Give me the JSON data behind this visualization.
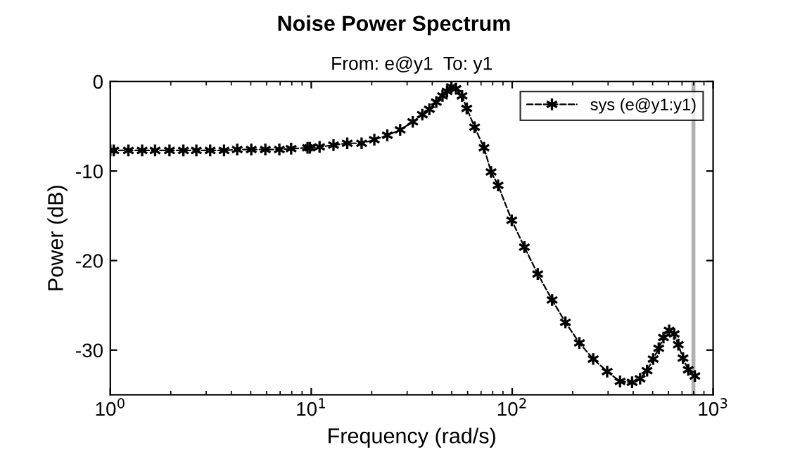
{
  "chart_data": {
    "type": "line",
    "title": "Noise Power Spectrum",
    "subtitle": "From: e@y1  To: y1",
    "xlabel": "Frequency (rad/s)",
    "ylabel": "Power (dB)",
    "log": "x",
    "xlim": [
      1,
      1000
    ],
    "ylim": [
      -35,
      0
    ],
    "xticks": [
      {
        "value": 1,
        "label": "10$^{0}$"
      },
      {
        "value": 10,
        "label": "10$^{1}$"
      },
      {
        "value": 100,
        "label": "10$^{2}$"
      },
      {
        "value": 1000,
        "label": "10$^{3}$"
      }
    ],
    "yticks": [
      -30,
      -20,
      -10,
      0
    ],
    "grid": false,
    "legend": "top right",
    "marker": "cross",
    "line_style": "dashed",
    "ref_lines": [
      {
        "axis": "x",
        "value": 798,
        "color": "#b0b0b0",
        "line_style": "solid"
      }
    ],
    "series": [
      {
        "name": "sys (e@y1:y1)",
        "color": "#000000",
        "x": [
          1.0,
          1.04,
          1.23,
          1.44,
          1.67,
          1.97,
          2.31,
          2.68,
          3.14,
          3.68,
          4.28,
          5.03,
          5.91,
          6.94,
          7.94,
          9.58,
          9.84,
          11.0,
          12.9,
          15.1,
          17.8,
          20.6,
          23.9,
          27.7,
          32.0,
          35.7,
          38.7,
          41.9,
          45.0,
          47.4,
          49.8,
          52.5,
          56.3,
          59.4,
          65.0,
          72.4,
          78.5,
          85.1,
          99.5,
          115,
          134,
          158,
          184,
          216,
          253,
          297,
          344,
          395,
          433,
          469,
          503,
          536,
          566,
          604,
          640,
          671,
          708,
          752,
          811
        ],
        "values": [
          -7.7,
          -7.7,
          -7.7,
          -7.7,
          -7.7,
          -7.7,
          -7.7,
          -7.7,
          -7.7,
          -7.7,
          -7.6,
          -7.6,
          -7.6,
          -7.6,
          -7.5,
          -7.4,
          -7.4,
          -7.3,
          -7.1,
          -6.9,
          -6.9,
          -6.5,
          -6.0,
          -5.4,
          -4.5,
          -3.7,
          -3.1,
          -2.3,
          -1.6,
          -1.1,
          -0.6,
          -0.8,
          -1.6,
          -3.0,
          -5.1,
          -7.4,
          -10.1,
          -11.6,
          -15.5,
          -18.5,
          -21.5,
          -24.4,
          -26.9,
          -29.2,
          -31.0,
          -32.4,
          -33.5,
          -33.6,
          -33.2,
          -32.3,
          -31.0,
          -29.8,
          -28.6,
          -27.8,
          -28.2,
          -29.4,
          -30.9,
          -32.2,
          -32.9
        ]
      }
    ]
  }
}
